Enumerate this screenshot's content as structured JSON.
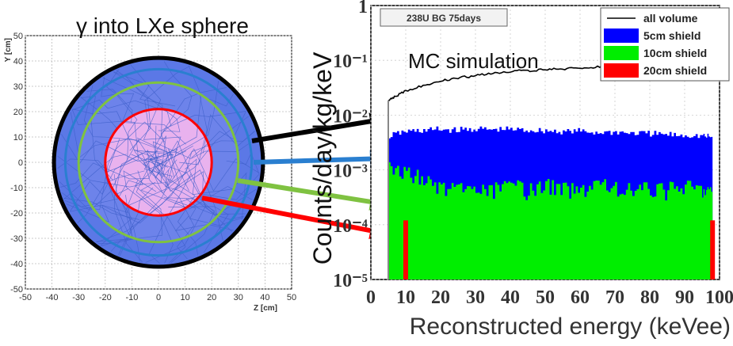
{
  "chart_data": [
    {
      "type": "scatter",
      "title": "γ into LXe sphere",
      "xlabel": "Z [cm]",
      "ylabel": "Y [cm]",
      "xlim": [
        -50,
        50
      ],
      "ylim": [
        -50,
        50
      ],
      "x_ticks": [
        "-50",
        "-40",
        "-30",
        "-20",
        "-10",
        "0",
        "10",
        "20",
        "30",
        "40",
        "50"
      ],
      "y_ticks": [
        "50",
        "40",
        "30",
        "20",
        "10",
        "0",
        "-10",
        "-20",
        "-30",
        "-40",
        "-50"
      ],
      "grid": true,
      "circles": [
        {
          "name": "all volume",
          "radius": 40,
          "color": "#000000"
        },
        {
          "name": "5cm shield",
          "radius": 35,
          "color": "#2a7fd0"
        },
        {
          "name": "10cm shield",
          "radius": 30,
          "color": "#7fc241"
        },
        {
          "name": "20cm shield",
          "radius": 20,
          "color": "#ff0000"
        }
      ]
    },
    {
      "type": "line",
      "title": "238U BG 75days",
      "annotation": "MC simulation",
      "xlabel": "Reconstructed energy (keVee)",
      "ylabel": "Counts/day/kg/keV",
      "xlim": [
        0,
        100
      ],
      "ylim": [
        1e-05,
        1
      ],
      "log_y": true,
      "grid": true,
      "legend_position": "top-right",
      "x_ticks": [
        "0",
        "10",
        "20",
        "30",
        "40",
        "50",
        "60",
        "70",
        "80",
        "90",
        "100"
      ],
      "y_ticks": [
        "1",
        "10⁻¹",
        "10⁻²",
        "10⁻³",
        "10⁻⁴",
        "10⁻⁵"
      ],
      "series": [
        {
          "name": "all volume",
          "color": "#000000",
          "style": "line",
          "x": [
            5,
            7,
            10,
            15,
            20,
            25,
            30,
            35,
            40,
            45,
            50,
            55,
            60,
            65,
            70,
            75,
            80,
            85,
            90,
            95,
            98
          ],
          "values": [
            0.018,
            0.022,
            0.028,
            0.035,
            0.042,
            0.048,
            0.052,
            0.058,
            0.063,
            0.065,
            0.068,
            0.07,
            0.072,
            0.075,
            0.078,
            0.082,
            0.088,
            0.092,
            0.095,
            0.1,
            0.105
          ]
        },
        {
          "name": "5cm shield",
          "color": "#0000ff",
          "style": "fill",
          "x": [
            5,
            10,
            15,
            20,
            25,
            30,
            35,
            40,
            45,
            50,
            55,
            60,
            65,
            70,
            75,
            80,
            85,
            90,
            95,
            98
          ],
          "values": [
            0.004,
            0.005,
            0.0052,
            0.0055,
            0.0053,
            0.0056,
            0.0054,
            0.0055,
            0.0053,
            0.0052,
            0.005,
            0.0051,
            0.0048,
            0.0049,
            0.0047,
            0.0046,
            0.0044,
            0.0043,
            0.0042,
            0.004
          ]
        },
        {
          "name": "10cm shield",
          "color": "#00ee00",
          "style": "fill",
          "x": [
            5,
            10,
            15,
            20,
            25,
            30,
            35,
            40,
            45,
            50,
            55,
            60,
            65,
            70,
            75,
            80,
            85,
            90,
            95,
            98
          ],
          "values": [
            0.001,
            0.0009,
            0.0007,
            0.0005,
            0.0004,
            0.00045,
            0.0004,
            0.0005,
            0.0004,
            0.0005,
            0.00045,
            0.0004,
            0.0006,
            0.00045,
            0.0004,
            0.00045,
            0.0004,
            0.0005,
            0.00045,
            0.0004
          ]
        },
        {
          "name": "20cm shield",
          "color": "#ff0000",
          "style": "bar",
          "x": [
            10,
            98
          ],
          "values": [
            0.00012,
            0.00012
          ]
        }
      ]
    }
  ]
}
